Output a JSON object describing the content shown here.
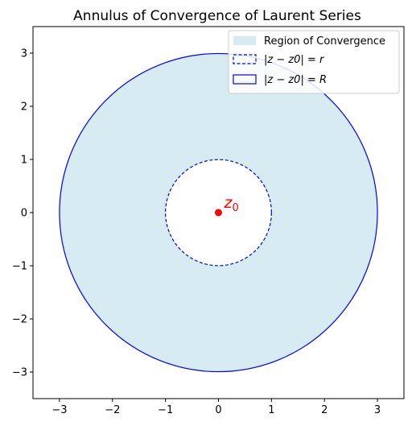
{
  "chart_data": {
    "type": "annulus",
    "title": "Annulus of Convergence of Laurent Series",
    "center": {
      "x": 0,
      "y": 0,
      "label": "z0"
    },
    "inner_radius": 1,
    "outer_radius": 3,
    "xlim": [
      -3.5,
      3.5
    ],
    "ylim": [
      -3.5,
      3.5
    ],
    "xticks": [
      -3,
      -2,
      -1,
      0,
      1,
      2,
      3
    ],
    "yticks": [
      -3,
      -2,
      -1,
      0,
      1,
      2,
      3
    ],
    "tick_labels": [
      "−3",
      "−2",
      "−1",
      "0",
      "1",
      "2",
      "3"
    ],
    "grid": false,
    "legend_position": "top-right",
    "legend": [
      {
        "key": "region",
        "label": "Region of Convergence"
      },
      {
        "key": "inner",
        "label": "|z − z0| = r"
      },
      {
        "key": "outer",
        "label": "|z − z0| = R"
      }
    ],
    "colors": {
      "fill": "#add8e6",
      "boundary": "#0000ff",
      "center_point": "#ff0000"
    }
  }
}
